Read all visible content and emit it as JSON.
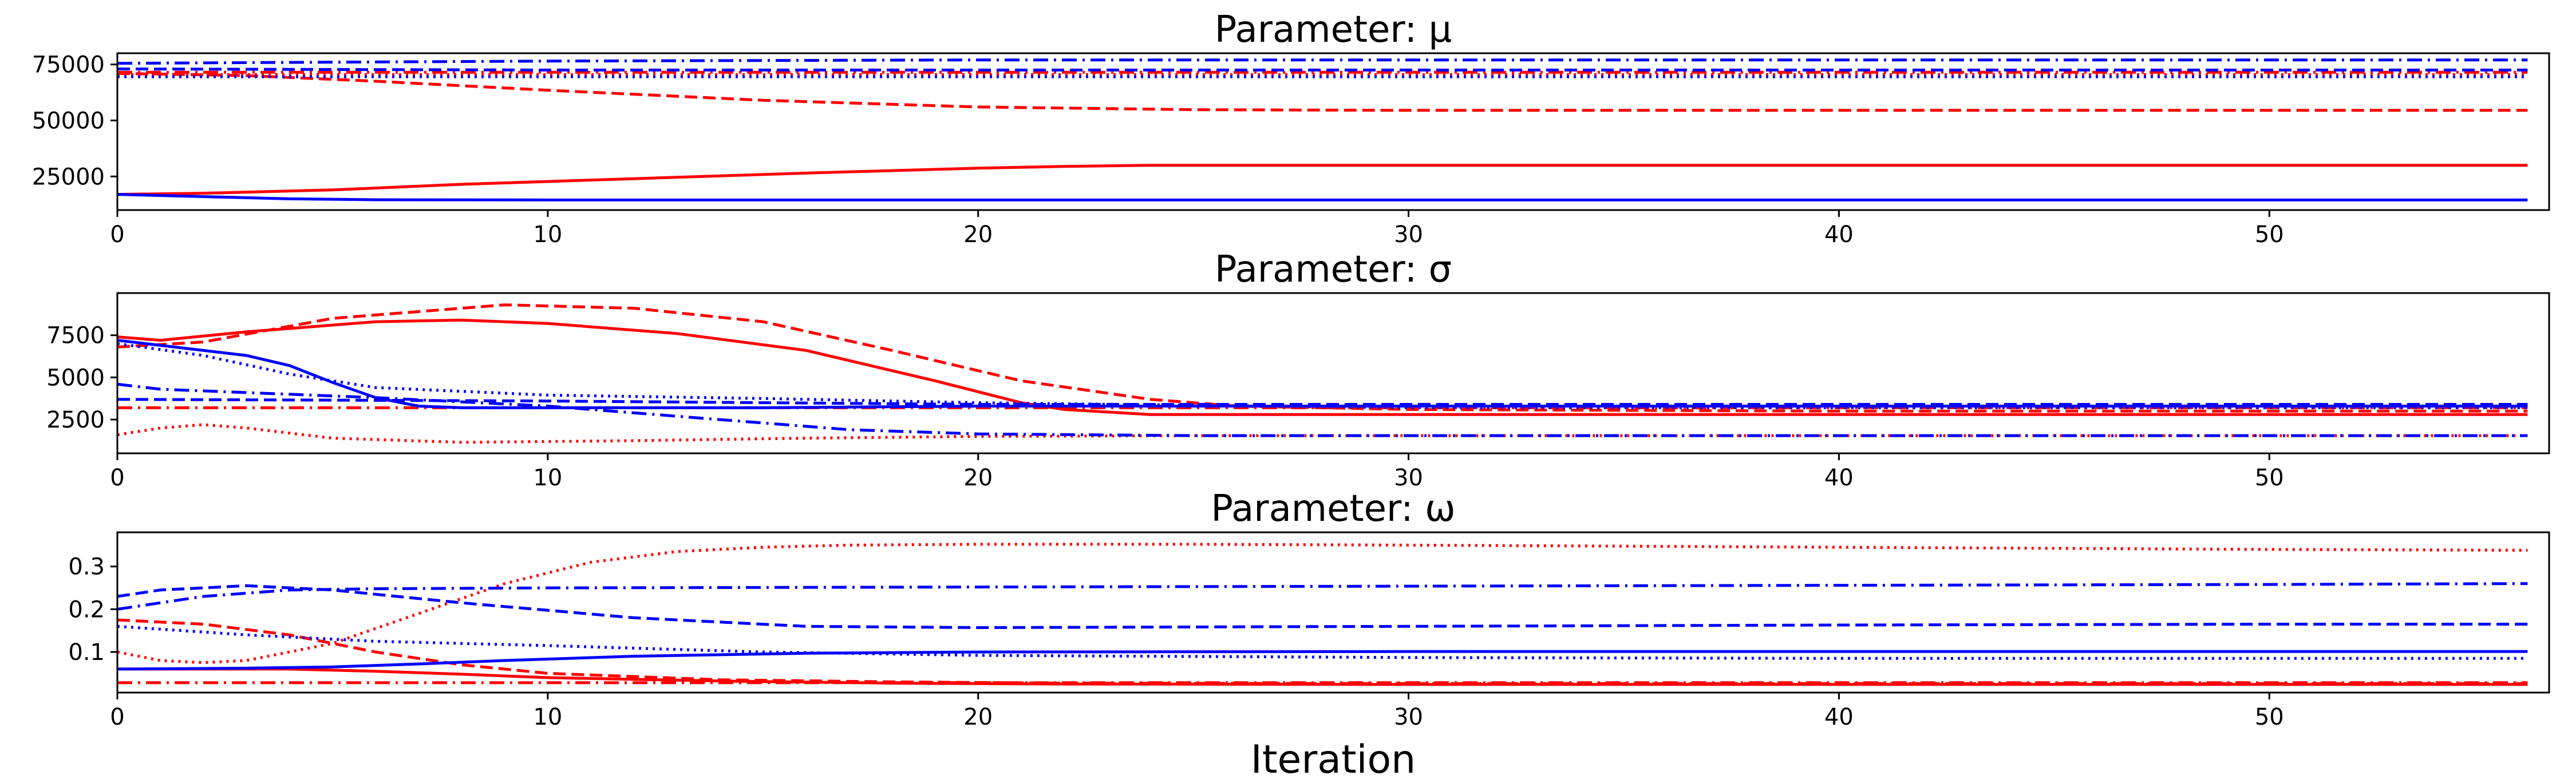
{
  "figure": {
    "xlabel": "Iteration"
  },
  "chart_data": [
    {
      "type": "line",
      "title": "Parameter: μ",
      "xlim": [
        0,
        56.5
      ],
      "ylim": [
        10000,
        80000
      ],
      "xticks": [
        0,
        10,
        20,
        30,
        40,
        50
      ],
      "yticks": [
        25000,
        50000,
        75000
      ],
      "ytick_labels": [
        "25000",
        "50000",
        "75000"
      ],
      "series": [
        {
          "color": "#ff0000",
          "style": "solid",
          "x": [
            0,
            2,
            5,
            8,
            12,
            16,
            20,
            22,
            24,
            30,
            40,
            50,
            56
          ],
          "y": [
            17000,
            17500,
            19000,
            21500,
            24000,
            26500,
            28700,
            29500,
            30000,
            30000,
            30000,
            30000,
            30000
          ]
        },
        {
          "color": "#ff0000",
          "style": "dashed",
          "x": [
            0,
            3,
            6,
            10,
            15,
            20,
            25,
            30,
            40,
            50,
            56
          ],
          "y": [
            71000,
            70000,
            67500,
            63500,
            59000,
            56000,
            54800,
            54500,
            54500,
            54500,
            54500
          ]
        },
        {
          "color": "#ff0000",
          "style": "dotted",
          "x": [
            0,
            10,
            20,
            30,
            40,
            50,
            56
          ],
          "y": [
            70500,
            70500,
            70500,
            70500,
            70500,
            70500,
            70500
          ]
        },
        {
          "color": "#ff0000",
          "style": "dashdot",
          "x": [
            0,
            10,
            20,
            30,
            40,
            50,
            56
          ],
          "y": [
            71500,
            71500,
            71500,
            71500,
            71500,
            71500,
            71500
          ]
        },
        {
          "color": "#0000ff",
          "style": "solid",
          "x": [
            0,
            2,
            4,
            6,
            10,
            20,
            30,
            40,
            50,
            56
          ],
          "y": [
            17000,
            16000,
            15000,
            14600,
            14500,
            14500,
            14500,
            14500,
            14500,
            14500
          ]
        },
        {
          "color": "#0000ff",
          "style": "dashed",
          "x": [
            0,
            10,
            20,
            30,
            40,
            50,
            56
          ],
          "y": [
            73000,
            72500,
            72500,
            72500,
            72500,
            72500,
            72500
          ]
        },
        {
          "color": "#0000ff",
          "style": "dotted",
          "x": [
            0,
            10,
            20,
            30,
            40,
            50,
            56
          ],
          "y": [
            69500,
            69500,
            69500,
            69500,
            69500,
            69500,
            69500
          ]
        },
        {
          "color": "#0000ff",
          "style": "dashdot",
          "x": [
            0,
            10,
            20,
            30,
            40,
            50,
            56
          ],
          "y": [
            75500,
            76500,
            77000,
            77000,
            77000,
            77000,
            77000
          ]
        }
      ]
    },
    {
      "type": "line",
      "title": "Parameter: σ",
      "xlim": [
        0,
        56.5
      ],
      "ylim": [
        500,
        10000
      ],
      "xticks": [
        0,
        10,
        20,
        30,
        40,
        50
      ],
      "yticks": [
        2500,
        5000,
        7500
      ],
      "ytick_labels": [
        "2500",
        "5000",
        "7500"
      ],
      "series": [
        {
          "color": "#ff0000",
          "style": "solid",
          "x": [
            0,
            1,
            3,
            6,
            8,
            10,
            13,
            16,
            19,
            21,
            22,
            24,
            30,
            40,
            50,
            56
          ],
          "y": [
            7400,
            7200,
            7700,
            8300,
            8400,
            8200,
            7600,
            6600,
            4800,
            3500,
            3100,
            2800,
            2800,
            2800,
            2800,
            2800
          ]
        },
        {
          "color": "#ff0000",
          "style": "dashed",
          "x": [
            0,
            2,
            5,
            9,
            12,
            15,
            18,
            21,
            24,
            26,
            30,
            40,
            50,
            56
          ],
          "y": [
            6800,
            7100,
            8500,
            9300,
            9100,
            8300,
            6600,
            4800,
            3700,
            3300,
            3100,
            3000,
            3000,
            3000
          ]
        },
        {
          "color": "#ff0000",
          "style": "dotted",
          "x": [
            0,
            1,
            2,
            3,
            5,
            8,
            12,
            16,
            20,
            25,
            30,
            40,
            50,
            56
          ],
          "y": [
            1600,
            2000,
            2200,
            2000,
            1400,
            1150,
            1250,
            1400,
            1500,
            1550,
            1550,
            1550,
            1550,
            1550
          ]
        },
        {
          "color": "#ff0000",
          "style": "dashdot",
          "x": [
            0,
            10,
            20,
            30,
            40,
            50,
            56
          ],
          "y": [
            3200,
            3200,
            3200,
            3200,
            3200,
            3200,
            3200
          ]
        },
        {
          "color": "#0000ff",
          "style": "solid",
          "x": [
            0,
            1,
            3,
            4,
            5,
            6,
            7,
            8,
            10,
            15,
            20,
            30,
            40,
            50,
            56
          ],
          "y": [
            7200,
            6900,
            6300,
            5700,
            4700,
            3800,
            3300,
            3200,
            3200,
            3200,
            3300,
            3300,
            3300,
            3300,
            3300
          ]
        },
        {
          "color": "#0000ff",
          "style": "dashed",
          "x": [
            0,
            10,
            20,
            30,
            40,
            50,
            56
          ],
          "y": [
            3700,
            3600,
            3400,
            3400,
            3400,
            3400,
            3400
          ]
        },
        {
          "color": "#0000ff",
          "style": "dotted",
          "x": [
            0,
            2,
            4,
            6,
            10,
            15,
            20,
            30,
            40,
            50,
            56
          ],
          "y": [
            7000,
            6300,
            5200,
            4400,
            3950,
            3750,
            3500,
            3200,
            3200,
            3200,
            3200
          ]
        },
        {
          "color": "#0000ff",
          "style": "dashdot",
          "x": [
            0,
            1,
            3,
            6,
            10,
            14,
            17,
            20,
            25,
            30,
            40,
            50,
            56
          ],
          "y": [
            4600,
            4300,
            4100,
            3800,
            3300,
            2500,
            1900,
            1650,
            1550,
            1550,
            1550,
            1550,
            1550
          ]
        }
      ]
    },
    {
      "type": "line",
      "title": "Parameter: ω",
      "xlim": [
        0,
        56.5
      ],
      "ylim": [
        0.005,
        0.38
      ],
      "xticks": [
        0,
        10,
        20,
        30,
        40,
        50
      ],
      "yticks": [
        0.1,
        0.2,
        0.3
      ],
      "ytick_labels": [
        "0.1",
        "0.2",
        "0.3"
      ],
      "series": [
        {
          "color": "#ff0000",
          "style": "solid",
          "x": [
            0,
            4,
            6,
            8,
            10,
            14,
            18,
            22,
            30,
            40,
            50,
            56
          ],
          "y": [
            0.06,
            0.06,
            0.055,
            0.048,
            0.04,
            0.032,
            0.027,
            0.025,
            0.024,
            0.024,
            0.024,
            0.024
          ]
        },
        {
          "color": "#ff0000",
          "style": "dashed",
          "x": [
            0,
            2,
            4,
            6,
            8,
            10,
            14,
            18,
            22,
            30,
            40,
            50,
            56
          ],
          "y": [
            0.175,
            0.165,
            0.14,
            0.1,
            0.07,
            0.05,
            0.035,
            0.03,
            0.027,
            0.026,
            0.026,
            0.026,
            0.026
          ]
        },
        {
          "color": "#ff0000",
          "style": "dotted",
          "x": [
            0,
            1,
            2,
            3,
            5,
            7,
            9,
            11,
            13,
            15,
            17,
            20,
            25,
            30,
            40,
            50,
            56
          ],
          "y": [
            0.1,
            0.08,
            0.075,
            0.08,
            0.12,
            0.19,
            0.26,
            0.31,
            0.335,
            0.345,
            0.35,
            0.352,
            0.352,
            0.35,
            0.345,
            0.34,
            0.338
          ]
        },
        {
          "color": "#ff0000",
          "style": "dashdot",
          "x": [
            0,
            10,
            20,
            30,
            40,
            50,
            56
          ],
          "y": [
            0.028,
            0.028,
            0.028,
            0.028,
            0.028,
            0.028,
            0.028
          ]
        },
        {
          "color": "#0000ff",
          "style": "solid",
          "x": [
            0,
            3,
            5,
            7,
            9,
            12,
            16,
            20,
            30,
            40,
            50,
            56
          ],
          "y": [
            0.06,
            0.062,
            0.065,
            0.072,
            0.08,
            0.09,
            0.097,
            0.1,
            0.101,
            0.101,
            0.101,
            0.101
          ]
        },
        {
          "color": "#0000ff",
          "style": "dashed",
          "x": [
            0,
            1,
            3,
            5,
            8,
            12,
            16,
            20,
            30,
            40,
            50,
            56
          ],
          "y": [
            0.23,
            0.245,
            0.255,
            0.245,
            0.215,
            0.18,
            0.16,
            0.157,
            0.16,
            0.163,
            0.165,
            0.165
          ]
        },
        {
          "color": "#0000ff",
          "style": "dotted",
          "x": [
            0,
            3,
            6,
            10,
            15,
            20,
            30,
            40,
            50,
            56
          ],
          "y": [
            0.16,
            0.14,
            0.125,
            0.115,
            0.1,
            0.092,
            0.087,
            0.085,
            0.085,
            0.085
          ]
        },
        {
          "color": "#0000ff",
          "style": "dashdot",
          "x": [
            0,
            2,
            4,
            6,
            10,
            20,
            30,
            40,
            50,
            56
          ],
          "y": [
            0.2,
            0.23,
            0.245,
            0.248,
            0.25,
            0.252,
            0.254,
            0.256,
            0.258,
            0.26
          ]
        }
      ]
    }
  ]
}
